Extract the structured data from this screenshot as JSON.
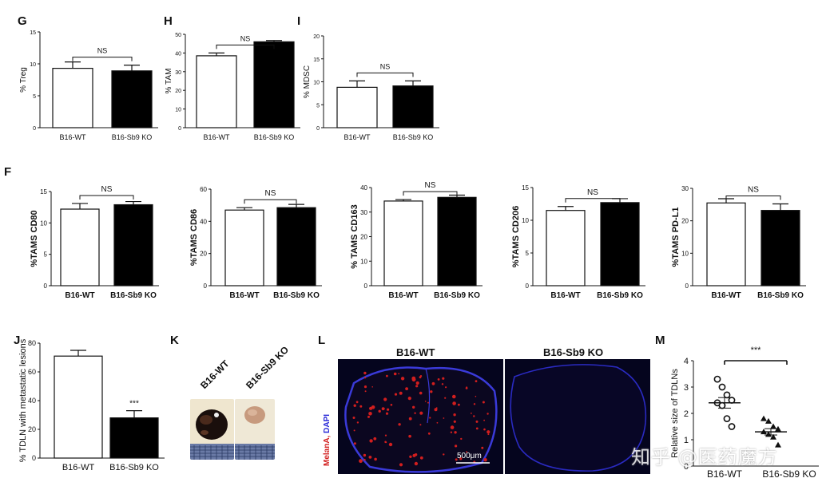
{
  "panels": {
    "G": "G",
    "H": "H",
    "I": "I",
    "F": "F",
    "J": "J",
    "K": "K",
    "L": "L",
    "M": "M"
  },
  "charts": [
    {
      "id": "G",
      "type": "bar",
      "ylabel": "% Treg",
      "bold": false,
      "categories": [
        "B16-WT",
        "B16-Sb9 KO"
      ],
      "values": [
        9.3,
        8.9
      ],
      "errors": [
        1.0,
        0.9
      ],
      "ylim": [
        0,
        15
      ],
      "ticks": [
        0,
        5,
        10,
        15
      ],
      "sig": "NS"
    },
    {
      "id": "H",
      "type": "bar",
      "ylabel": "% TAM",
      "bold": false,
      "categories": [
        "B16-WT",
        "B16-Sb9 KO"
      ],
      "values": [
        38.5,
        46
      ],
      "errors": [
        1.5,
        0.7
      ],
      "ylim": [
        0,
        50
      ],
      "ticks": [
        0,
        10,
        20,
        30,
        40,
        50
      ],
      "sig": "NS"
    },
    {
      "id": "I",
      "type": "bar",
      "ylabel": "% MDSC",
      "bold": false,
      "categories": [
        "B16-WT",
        "B16-Sb9 KO"
      ],
      "values": [
        8.8,
        9.1
      ],
      "errors": [
        1.4,
        1.1
      ],
      "ylim": [
        0,
        20
      ],
      "ticks": [
        0,
        5,
        10,
        15,
        20
      ],
      "sig": "NS"
    },
    {
      "id": "F1",
      "type": "bar",
      "ylabel": "%TAMS CD80",
      "bold": true,
      "categories": [
        "B16-WT",
        "B16-Sb9 KO"
      ],
      "values": [
        12.2,
        12.9
      ],
      "errors": [
        0.9,
        0.5
      ],
      "ylim": [
        0,
        15
      ],
      "ticks": [
        0,
        5,
        10,
        15
      ],
      "sig": "NS"
    },
    {
      "id": "F2",
      "type": "bar",
      "ylabel": "%TAMS CD86",
      "bold": true,
      "categories": [
        "B16-WT",
        "B16-Sb9 KO"
      ],
      "values": [
        47,
        48.5
      ],
      "errors": [
        1.5,
        2.0
      ],
      "ylim": [
        0,
        60
      ],
      "ticks": [
        0,
        20,
        40,
        60
      ],
      "sig": "NS"
    },
    {
      "id": "F3",
      "type": "bar",
      "ylabel": "% TAMS CD163",
      "bold": true,
      "categories": [
        "B16-WT",
        "B16-Sb9 KO"
      ],
      "values": [
        34.5,
        36
      ],
      "errors": [
        0.6,
        0.9
      ],
      "ylim": [
        0,
        40
      ],
      "ticks": [
        0,
        10,
        20,
        30,
        40
      ],
      "sig": "NS"
    },
    {
      "id": "F4",
      "type": "bar",
      "ylabel": "%TAMS CD206",
      "bold": true,
      "categories": [
        "B16-WT",
        "B16-Sb9 KO"
      ],
      "values": [
        11.5,
        12.7
      ],
      "errors": [
        0.6,
        0.6
      ],
      "ylim": [
        0,
        15
      ],
      "ticks": [
        0,
        5,
        10,
        15
      ],
      "sig": "NS"
    },
    {
      "id": "F5",
      "type": "bar",
      "ylabel": "%TAMS PD-L1",
      "bold": true,
      "categories": [
        "B16-WT",
        "B16-Sb9 KO"
      ],
      "values": [
        25.5,
        23.2
      ],
      "errors": [
        1.3,
        2.0
      ],
      "ylim": [
        0,
        30
      ],
      "ticks": [
        0,
        10,
        20,
        30
      ],
      "sig": "NS"
    },
    {
      "id": "J",
      "type": "bar",
      "ylabel": "% TDLN with metastatic lesions",
      "bold": false,
      "categories": [
        "B16-WT",
        "B16-Sb9 KO"
      ],
      "values": [
        71,
        28
      ],
      "errors": [
        4,
        5
      ],
      "ylim": [
        0,
        80
      ],
      "ticks": [
        0,
        20,
        40,
        60,
        80
      ],
      "sig": "***"
    }
  ],
  "chart_data": [
    {
      "type": "bar",
      "ylabel": "% Treg",
      "categories": [
        "B16-WT",
        "B16-Sb9 KO"
      ],
      "values": [
        9.3,
        8.9
      ],
      "ylim": [
        0,
        15
      ]
    },
    {
      "type": "bar",
      "ylabel": "% TAM",
      "categories": [
        "B16-WT",
        "B16-Sb9 KO"
      ],
      "values": [
        38.5,
        46
      ],
      "ylim": [
        0,
        50
      ]
    },
    {
      "type": "bar",
      "ylabel": "% MDSC",
      "categories": [
        "B16-WT",
        "B16-Sb9 KO"
      ],
      "values": [
        8.8,
        9.1
      ],
      "ylim": [
        0,
        20
      ]
    },
    {
      "type": "bar",
      "ylabel": "%TAMS CD80",
      "categories": [
        "B16-WT",
        "B16-Sb9 KO"
      ],
      "values": [
        12.2,
        12.9
      ],
      "ylim": [
        0,
        15
      ]
    },
    {
      "type": "bar",
      "ylabel": "%TAMS CD86",
      "categories": [
        "B16-WT",
        "B16-Sb9 KO"
      ],
      "values": [
        47,
        48.5
      ],
      "ylim": [
        0,
        60
      ]
    },
    {
      "type": "bar",
      "ylabel": "% TAMS CD163",
      "categories": [
        "B16-WT",
        "B16-Sb9 KO"
      ],
      "values": [
        34.5,
        36
      ],
      "ylim": [
        0,
        40
      ]
    },
    {
      "type": "bar",
      "ylabel": "%TAMS CD206",
      "categories": [
        "B16-WT",
        "B16-Sb9 KO"
      ],
      "values": [
        11.5,
        12.7
      ],
      "ylim": [
        0,
        15
      ]
    },
    {
      "type": "bar",
      "ylabel": "%TAMS PD-L1",
      "categories": [
        "B16-WT",
        "B16-Sb9 KO"
      ],
      "values": [
        25.5,
        23.2
      ],
      "ylim": [
        0,
        30
      ]
    },
    {
      "type": "bar",
      "ylabel": "% TDLN with metastatic lesions",
      "categories": [
        "B16-WT",
        "B16-Sb9 KO"
      ],
      "values": [
        71,
        28
      ],
      "ylim": [
        0,
        80
      ]
    },
    {
      "type": "scatter",
      "ylabel": "Relative size of TDLNs",
      "categories": [
        "B16-WT",
        "B16-Sb9 KO"
      ],
      "series": [
        {
          "values": [
            3.3,
            3.0,
            2.7,
            2.5,
            2.4,
            2.3,
            1.8,
            1.5
          ]
        },
        {
          "values": [
            1.8,
            1.7,
            1.5,
            1.4,
            1.3,
            1.2,
            1.1,
            0.8
          ]
        }
      ],
      "means": [
        2.4,
        1.3
      ],
      "sem": [
        0.2,
        0.12
      ],
      "ylim": [
        0,
        4
      ],
      "sig": "***"
    }
  ],
  "scatterM": {
    "ylabel": "Relative size of TDLNs",
    "categories": [
      "B16-WT",
      "B16-Sb9 KO"
    ],
    "groups": [
      {
        "values": [
          3.3,
          3.0,
          2.7,
          2.5,
          2.4,
          2.3,
          1.8,
          1.5
        ],
        "mean": 2.4,
        "sem": 0.2,
        "marker": "circle"
      },
      {
        "values": [
          1.8,
          1.7,
          1.5,
          1.4,
          1.3,
          1.2,
          1.1,
          0.8
        ],
        "mean": 1.3,
        "sem": 0.12,
        "marker": "triangle"
      }
    ],
    "ylim": [
      0,
      4
    ],
    "ticks": [
      0,
      1,
      2,
      3,
      4
    ],
    "sig": "***"
  },
  "K": {
    "label_wt": "B16-WT",
    "label_ko": "B16-Sb9 KO"
  },
  "L": {
    "title_wt": "B16-WT",
    "title_ko": "B16-Sb9 KO",
    "stain_red": "MelanA,",
    "stain_blue": " DAPI",
    "scalebar": "500μm"
  },
  "watermark": "知乎 @医药魔方",
  "colors": {
    "bar_wt": "#ffffff",
    "bar_ko": "#000000",
    "micro_bg": "#05051e",
    "micro_ring": "#3a3ad8",
    "red": "#d21e1e"
  }
}
